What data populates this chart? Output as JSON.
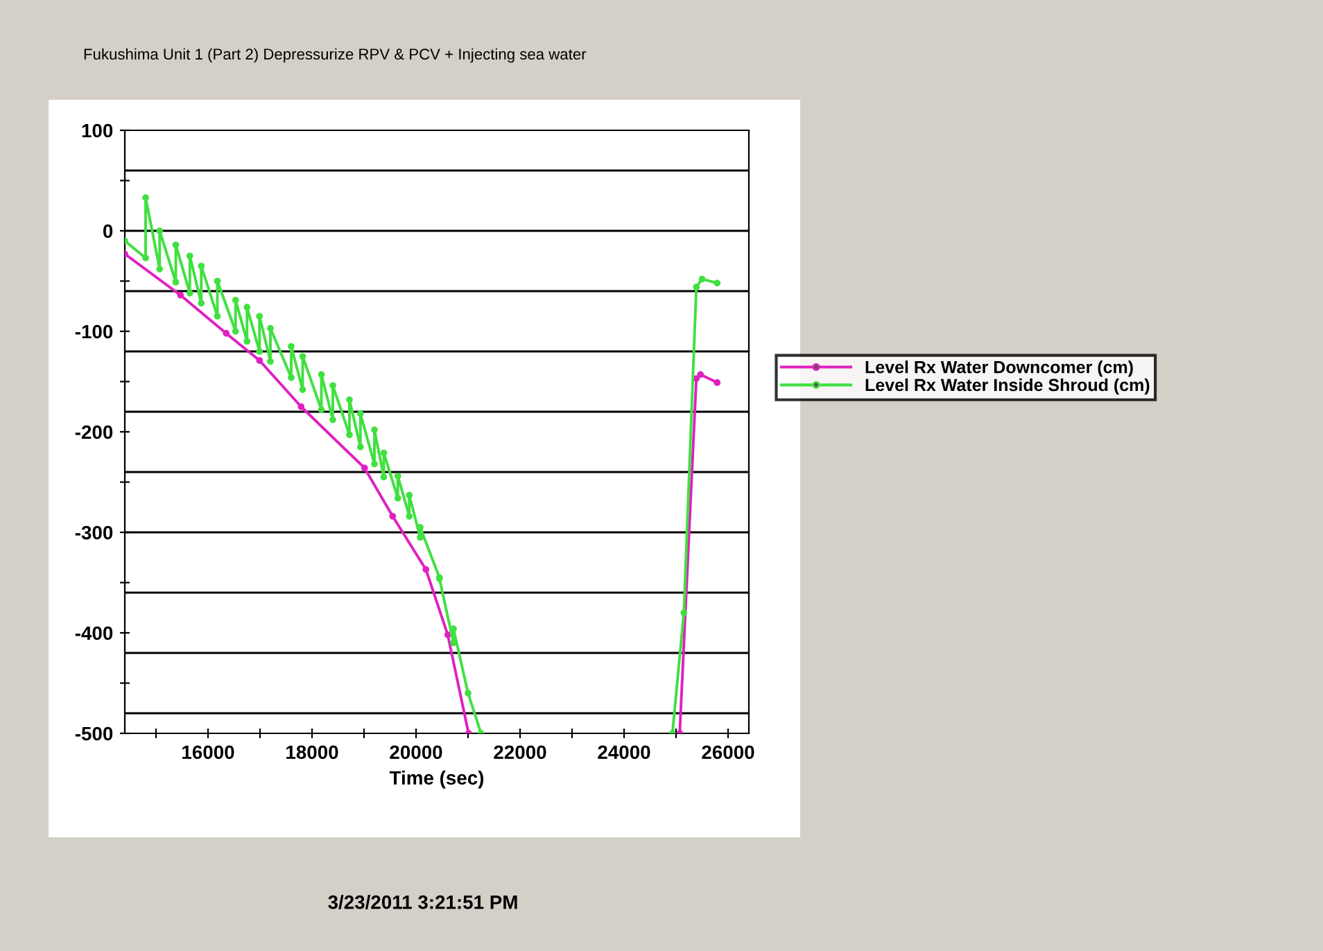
{
  "chart_data": {
    "type": "line",
    "title": "Fukushima Unit 1 (Part 2) Depressurize RPV & PCV + Injecting sea water",
    "xlabel": "Time (sec)",
    "annotations": [
      "3/23/2011 3:21:51 PM"
    ],
    "xlim": [
      14400,
      26400
    ],
    "xticks": [
      {
        "value": 15000,
        "label": null
      },
      16000,
      {
        "value": 17000,
        "label": null
      },
      18000,
      {
        "value": 19000,
        "label": null
      },
      20000,
      {
        "value": 21000,
        "label": null
      },
      22000,
      {
        "value": 23000,
        "label": null
      },
      24000,
      {
        "value": 25000,
        "label": null
      },
      26000
    ],
    "ylim": [
      -500,
      100
    ],
    "yticks": [
      -500,
      {
        "value": -450,
        "label": null
      },
      -400,
      {
        "value": -350,
        "label": null
      },
      -300,
      {
        "value": -250,
        "label": null
      },
      -200,
      {
        "value": -150,
        "label": null
      },
      -100,
      {
        "value": -50,
        "label": null
      },
      0,
      {
        "value": 50,
        "label": null
      },
      100
    ],
    "ref_lines": [
      {
        "axis": "y",
        "value": 60,
        "color": "#000000"
      },
      {
        "axis": "y",
        "value": 0,
        "color": "#000000"
      },
      {
        "axis": "y",
        "value": -60,
        "color": "#000000"
      },
      {
        "axis": "y",
        "value": -120,
        "color": "#000000"
      },
      {
        "axis": "y",
        "value": -180,
        "color": "#000000"
      },
      {
        "axis": "y",
        "value": -240,
        "color": "#000000"
      },
      {
        "axis": "y",
        "value": -300,
        "color": "#000000"
      },
      {
        "axis": "y",
        "value": -360,
        "color": "#000000"
      },
      {
        "axis": "y",
        "value": -420,
        "color": "#000000"
      },
      {
        "axis": "y",
        "value": -480,
        "color": "#000000"
      }
    ],
    "legend": "right",
    "marker": "circle",
    "line_style": "solid",
    "series": [
      {
        "name": "Level Rx Water Downcomer (cm)",
        "color": "#e020c0",
        "x": [
          14400,
          15470,
          16350,
          16990,
          17790,
          19010,
          19550,
          20190,
          20610,
          21010,
          null,
          25070,
          25390,
          25470,
          25790
        ],
        "values": [
          -23,
          -64,
          -102,
          -129,
          -175,
          -236,
          -284,
          -337,
          -402,
          -500,
          null,
          -500,
          -147,
          -143,
          -151
        ]
      },
      {
        "name": "Level Rx Water Inside Shroud (cm)",
        "color": "#40e040",
        "x": [
          14400,
          14800,
          14800,
          15070,
          15070,
          15380,
          15380,
          15650,
          15650,
          15870,
          15870,
          16180,
          16180,
          16530,
          16530,
          16750,
          16750,
          16990,
          16990,
          17200,
          17200,
          17600,
          17600,
          17820,
          17820,
          18180,
          18180,
          18400,
          18400,
          18720,
          18720,
          18930,
          18930,
          19200,
          19200,
          19380,
          19380,
          19650,
          19650,
          19870,
          19870,
          20080,
          20080,
          20450,
          20450,
          20720,
          20720,
          21000,
          21250,
          null,
          24930,
          25150,
          25390,
          25500,
          25790
        ],
        "values": [
          -10,
          -27,
          33,
          -38,
          0,
          -51,
          -14,
          -62,
          -25,
          -72,
          -35,
          -85,
          -50,
          -100,
          -69,
          -110,
          -76,
          -120,
          -85,
          -130,
          -97,
          -146,
          -115,
          -158,
          -125,
          -178,
          -143,
          -188,
          -154,
          -203,
          -168,
          -215,
          -182,
          -232,
          -198,
          -245,
          -221,
          -266,
          -244,
          -284,
          -263,
          -305,
          -295,
          -345,
          -346,
          -410,
          -396,
          -460,
          -500,
          null,
          -500,
          -380,
          -56,
          -48,
          -52
        ]
      }
    ]
  }
}
